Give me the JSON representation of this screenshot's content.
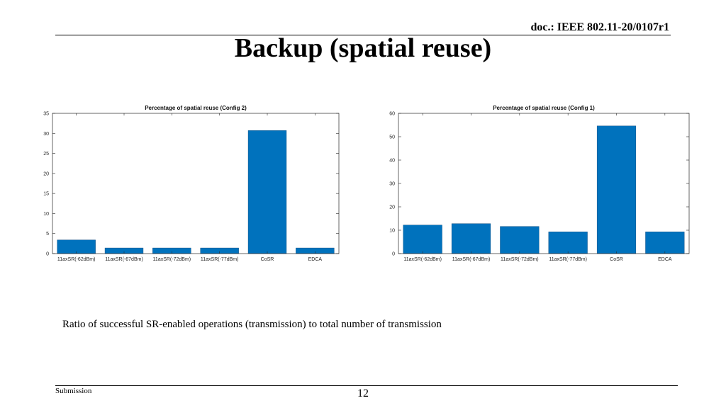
{
  "header": {
    "doc_label": "doc.: IEEE 802.11-20/0107r1"
  },
  "slide": {
    "title": "Backup (spatial reuse)",
    "caption": "Ratio of successful SR-enabled operations (transmission) to total number of transmission"
  },
  "footer": {
    "left": "Submission",
    "page": "12"
  },
  "colors": {
    "bar": "#0072BD",
    "axis": "#262626"
  },
  "chart_data": [
    {
      "type": "bar",
      "title": "Percentage of spatial reuse (Config 2)",
      "categories": [
        "11axSR(-62dBm)",
        "11axSR(-67dBm)",
        "11axSR(-72dBm)",
        "11axSR(-77dBm)",
        "CoSR",
        "EDCA"
      ],
      "values": [
        3.4,
        1.4,
        1.4,
        1.4,
        30.7,
        1.4
      ],
      "ylim": [
        0,
        35
      ],
      "yticks": [
        0,
        5,
        10,
        15,
        20,
        25,
        30,
        35
      ],
      "xlabel": "",
      "ylabel": "",
      "grid": false
    },
    {
      "type": "bar",
      "title": "Percentage of spatial reuse (Config 1)",
      "categories": [
        "11axSR(-62dBm)",
        "11axSR(-67dBm)",
        "11axSR(-72dBm)",
        "11axSR(-77dBm)",
        "CoSR",
        "EDCA"
      ],
      "values": [
        12.2,
        12.8,
        11.6,
        9.3,
        54.6,
        9.3
      ],
      "ylim": [
        0,
        60
      ],
      "yticks": [
        0,
        10,
        20,
        30,
        40,
        50,
        60
      ],
      "xlabel": "",
      "ylabel": "",
      "grid": false
    }
  ]
}
